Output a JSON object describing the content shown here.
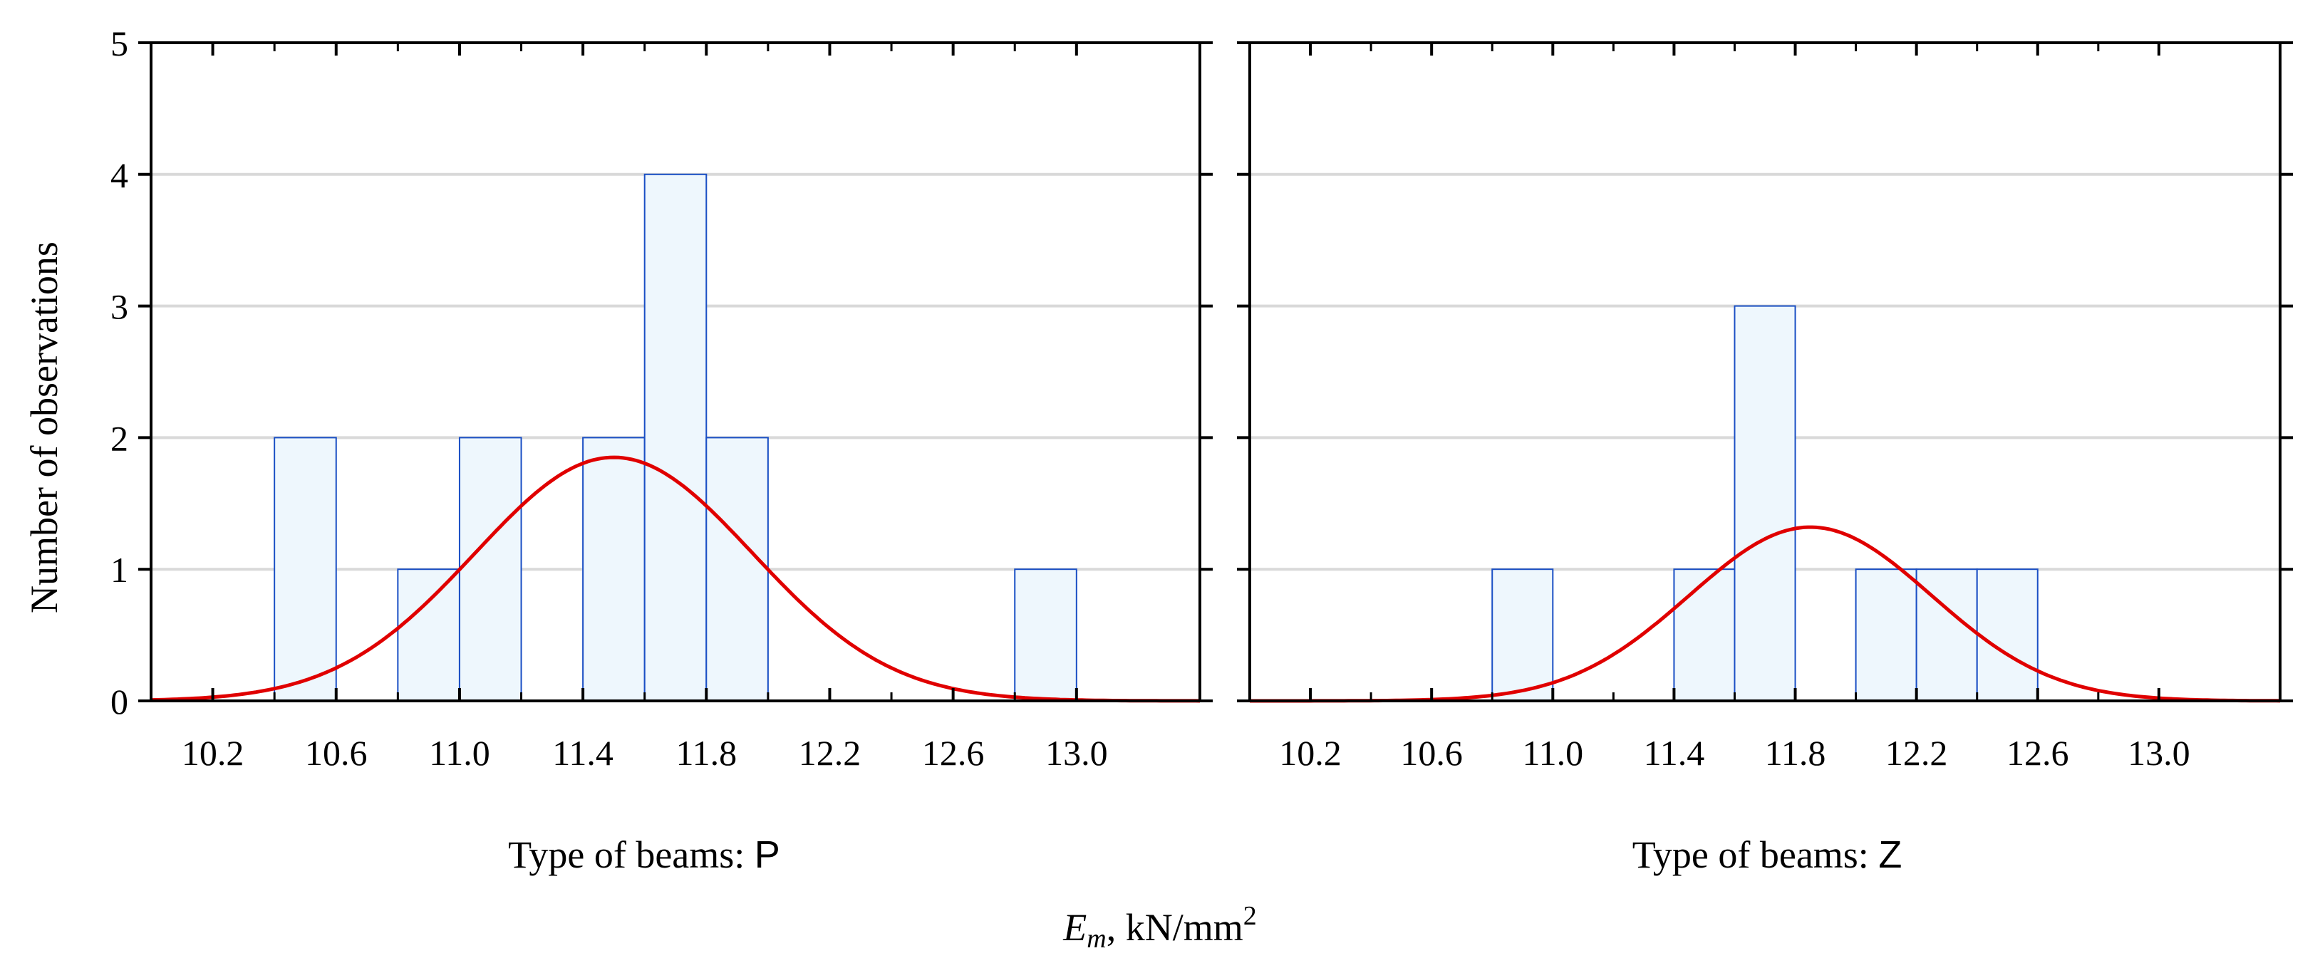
{
  "chart_data": {
    "type": "bar",
    "y_axis_label": "Number of observations",
    "x_axis_label": {
      "symbol": "E",
      "subscript": "m",
      "units": ", kN/mm",
      "superscript": "2"
    },
    "shared_xlim": [
      10.0,
      13.4
    ],
    "shared_ylim": [
      0,
      5
    ],
    "x_ticks": [
      "10.2",
      "10.6",
      "11.0",
      "11.4",
      "11.8",
      "12.2",
      "12.6",
      "13.0"
    ],
    "x_tick_values": [
      10.2,
      10.6,
      11.0,
      11.4,
      11.8,
      12.2,
      12.6,
      13.0
    ],
    "y_ticks": [
      "0",
      "1",
      "2",
      "3",
      "4",
      "5"
    ],
    "y_tick_values": [
      0,
      1,
      2,
      3,
      4,
      5
    ],
    "gridlines": [
      1,
      2,
      3,
      4
    ],
    "panels": [
      {
        "title_prefix": "Type of beams: ",
        "title_type": "P",
        "bin_width": 0.2,
        "bins": [
          {
            "start": 10.4,
            "count": 2
          },
          {
            "start": 10.8,
            "count": 1
          },
          {
            "start": 11.0,
            "count": 2
          },
          {
            "start": 11.4,
            "count": 2
          },
          {
            "start": 11.6,
            "count": 4
          },
          {
            "start": 11.8,
            "count": 2
          },
          {
            "start": 12.8,
            "count": 1
          }
        ],
        "normal_fit": {
          "mean": 11.5,
          "sd": 0.45,
          "peak": 1.85
        }
      },
      {
        "title_prefix": "Type of beams: ",
        "title_type": "Z",
        "bin_width": 0.2,
        "bins": [
          {
            "start": 10.8,
            "count": 1
          },
          {
            "start": 11.4,
            "count": 1
          },
          {
            "start": 11.6,
            "count": 3
          },
          {
            "start": 12.0,
            "count": 1
          },
          {
            "start": 12.2,
            "count": 1
          },
          {
            "start": 12.4,
            "count": 1
          }
        ],
        "normal_fit": {
          "mean": 11.85,
          "sd": 0.4,
          "peak": 1.32
        }
      }
    ],
    "colors": {
      "bar_top": "#0090f0",
      "bar_mid": "#7ec8f5",
      "bar_bottom": "#e6f3fc",
      "bar_edge": "#1a4fc4",
      "curve": "#e00000",
      "grid": "#d9d9d9"
    }
  }
}
